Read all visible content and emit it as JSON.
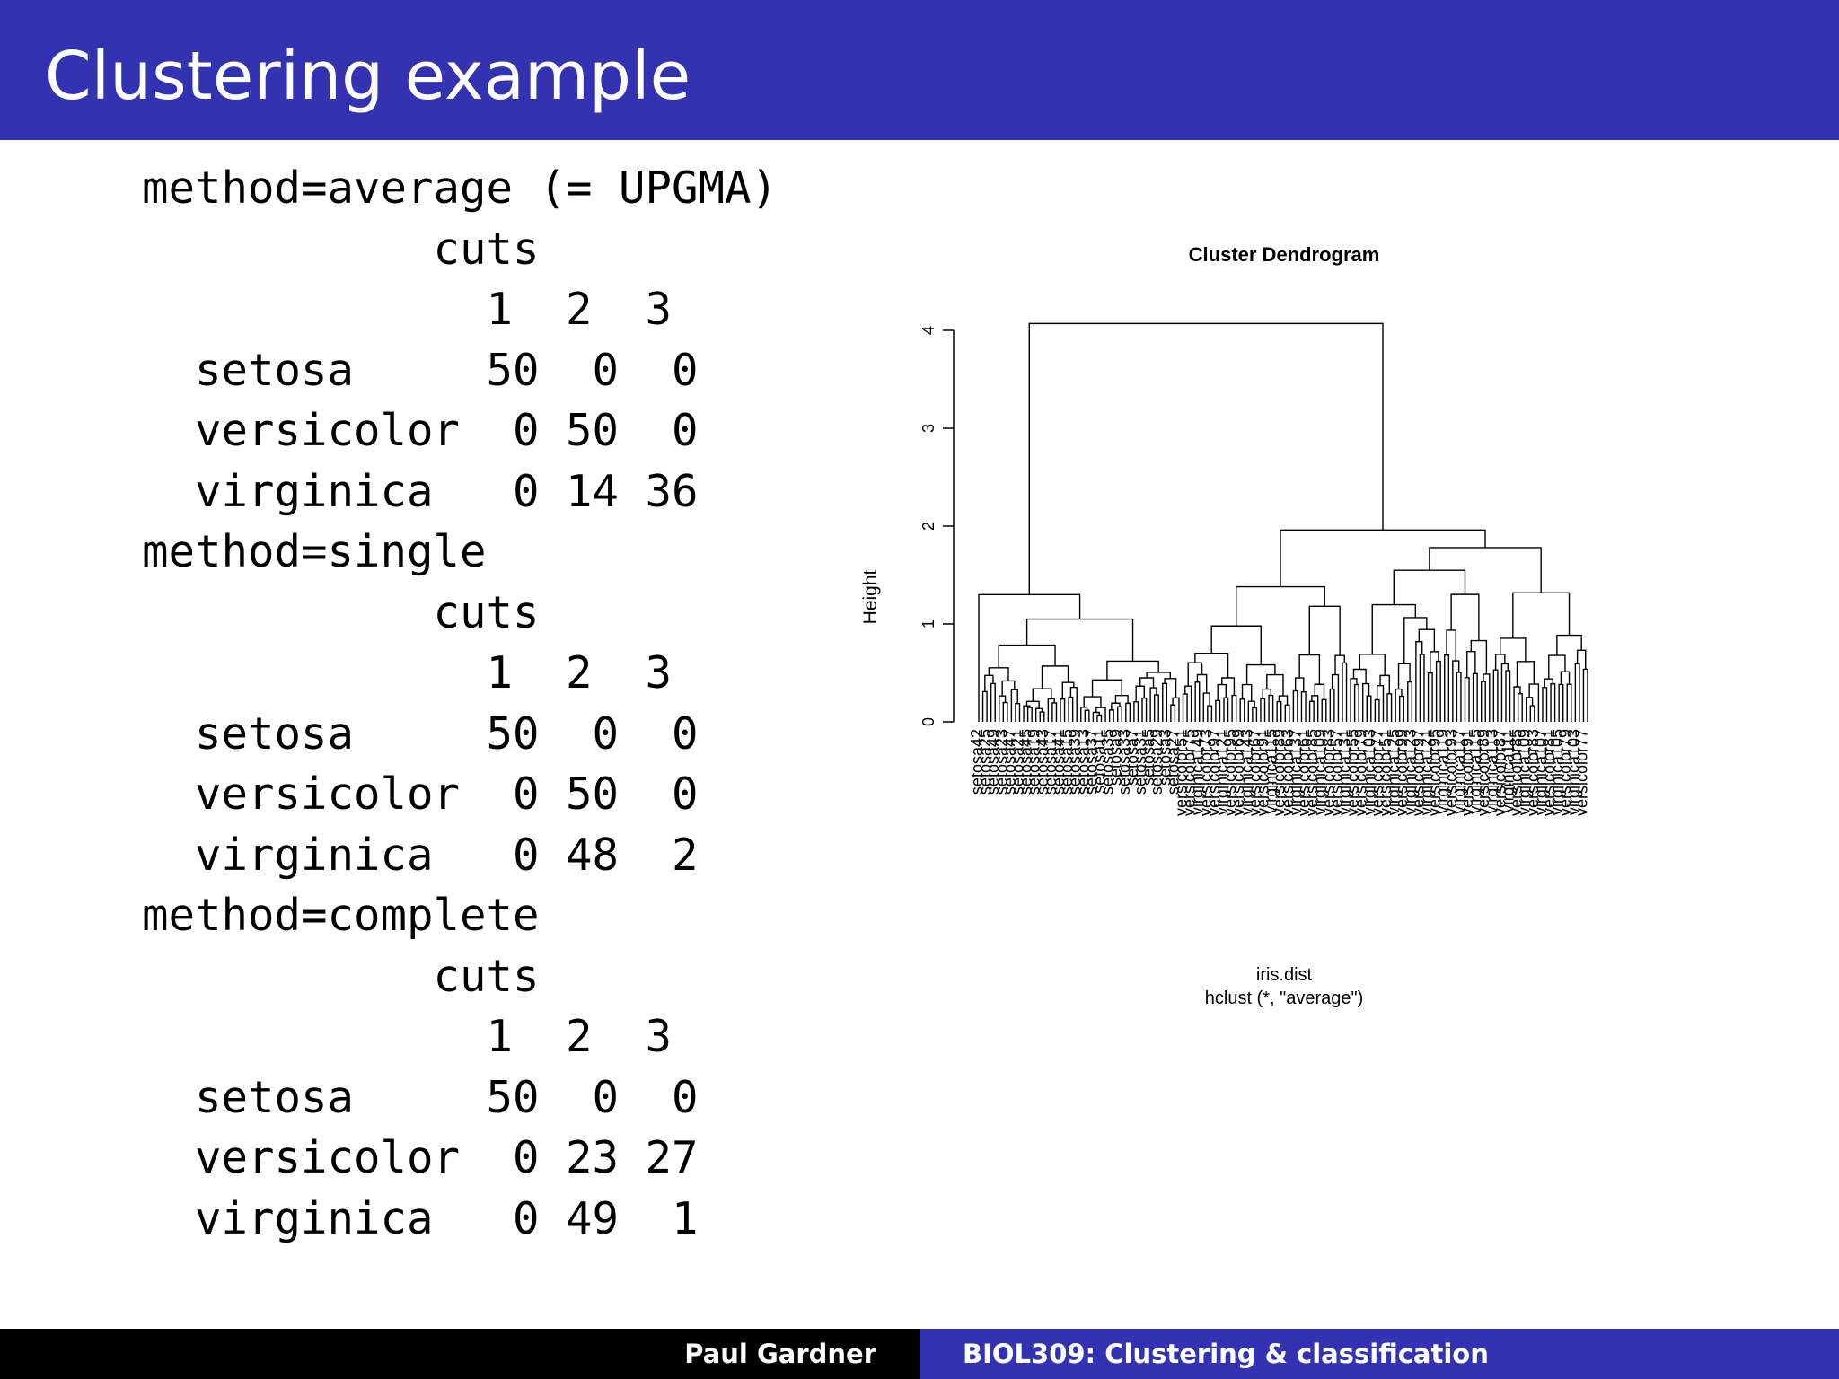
{
  "slide": {
    "title": "Clustering example"
  },
  "code_lines": [
    "method=average (= UPGMA)",
    "           cuts",
    "             1  2  3",
    "  setosa     50  0  0",
    "  versicolor  0 50  0",
    "  virginica   0 14 36",
    "method=single",
    "           cuts",
    "             1  2  3",
    "  setosa     50  0  0",
    "  versicolor  0 50  0",
    "  virginica   0 48  2",
    "method=complete",
    "           cuts",
    "             1  2  3",
    "  setosa     50  0  0",
    "  versicolor  0 23 27",
    "  virginica   0 49  1"
  ],
  "chart_data": {
    "type": "dendrogram",
    "title": "Cluster Dendrogram",
    "ylabel": "Height",
    "yticks": [
      "0",
      "1",
      "2",
      "3",
      "4"
    ],
    "ylim": [
      0,
      4
    ],
    "xlabel": "iris.dist",
    "subtitle": "hclust (*, \"average\")",
    "merges": [
      {
        "node": "setosa-group",
        "height": 1.3,
        "children": [
          "setosa42",
          "setosa-rest"
        ]
      },
      {
        "node": "non-setosa",
        "height": 1.96,
        "children": [
          "mixed-group",
          "virginica-group"
        ]
      },
      {
        "node": "root",
        "height": 4.07,
        "children": [
          "setosa-group",
          "non-setosa"
        ]
      }
    ],
    "visible_leaf_labels": [
      "setosa42",
      "setosa23",
      "setosa15",
      "setosa36",
      "setosa45",
      "setosa17",
      "virginica110",
      "virginica106",
      "virginica118",
      "virginica136",
      "versicolor76",
      "versicolor86",
      "versicolor107",
      "virginica120",
      "virginica115",
      "versicolor62",
      "versicolor60"
    ]
  },
  "footer": {
    "author": "Paul Gardner",
    "course": "BIOL309: Clustering & classification"
  }
}
